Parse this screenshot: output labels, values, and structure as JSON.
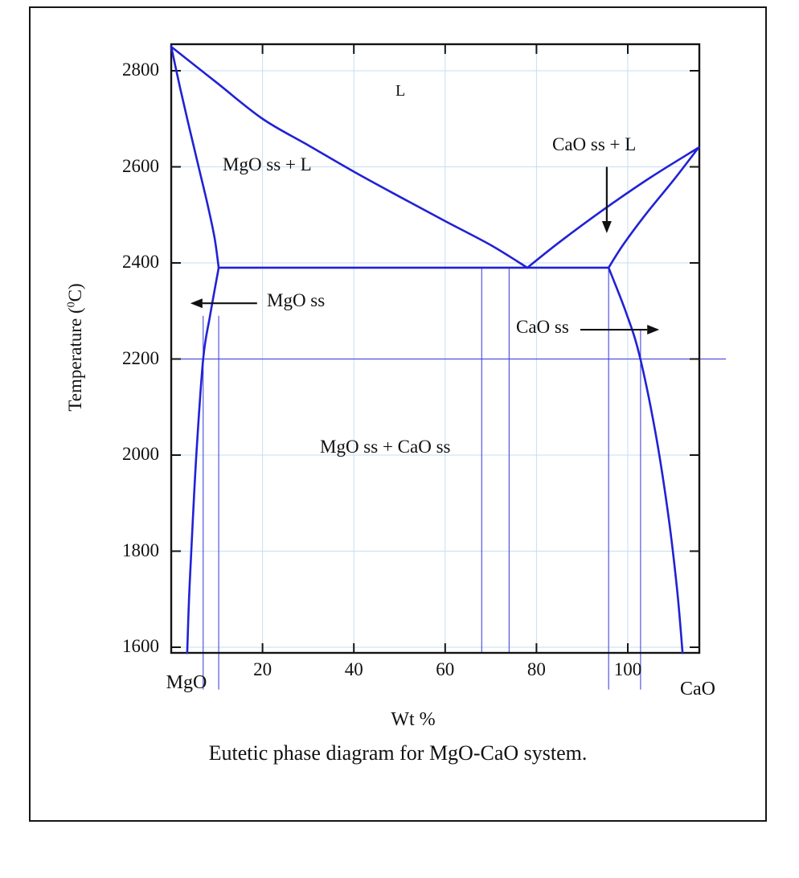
{
  "figure": {
    "caption": "Eutetic phase diagram for MgO-CaO system."
  },
  "axes": {
    "y_title_pre": "Temperature (",
    "y_title_sup": "0",
    "y_title_post": "C)",
    "x_title": "Wt %",
    "x_end_left": "MgO",
    "x_end_right": "CaO"
  },
  "chart_data": {
    "type": "line",
    "title": "Eutetic phase diagram for MgO-CaO system.",
    "xlabel": "Wt % (MgO to CaO)",
    "ylabel": "Temperature (0C)",
    "x_range_wt_pct": [
      0,
      115.5
    ],
    "y_range_c": [
      1588,
      2855
    ],
    "x_ticks": [
      20,
      40,
      60,
      80,
      100
    ],
    "y_ticks": [
      1600,
      1800,
      2000,
      2200,
      2400,
      2600,
      2800
    ],
    "grid": true,
    "colors": {
      "curve": "#2121d6",
      "thin_line": "#3434d9",
      "grid": "#c6dff1",
      "axis": "#141414",
      "text": "#111111",
      "arrow": "#111111"
    },
    "region_labels": {
      "liquid": "L",
      "mgo_ss_plus_l": "MgO ss + L",
      "cao_ss_plus_l": "CaO ss + L",
      "mgo_ss": "MgO ss",
      "cao_ss": "CaO ss",
      "mgo_ss_plus_cao_ss": "MgO ss + CaO ss"
    },
    "key_points": {
      "mgo_melting_c": 2850,
      "cao_corner_c": 2640,
      "eutectic_c": 2390,
      "eutectic_wt_pct": 78,
      "mgo_ss_solubility_limit_wt": 10.4,
      "cao_ss_solubility_limit_wt": 95.8
    },
    "series": [
      {
        "name": "mgo_liquidus",
        "points": [
          [
            0,
            2850
          ],
          [
            10,
            2775
          ],
          [
            20,
            2700
          ],
          [
            30,
            2645
          ],
          [
            40,
            2590
          ],
          [
            50,
            2538
          ],
          [
            60,
            2487
          ],
          [
            70,
            2437
          ],
          [
            78,
            2390
          ]
        ]
      },
      {
        "name": "cao_liquidus",
        "points": [
          [
            78,
            2390
          ],
          [
            85,
            2443
          ],
          [
            95,
            2513
          ],
          [
            105,
            2578
          ],
          [
            115.5,
            2640
          ]
        ]
      },
      {
        "name": "mgo_solidus",
        "points": [
          [
            0,
            2850
          ],
          [
            2,
            2762
          ],
          [
            4,
            2680
          ],
          [
            6,
            2600
          ],
          [
            8,
            2520
          ],
          [
            9.5,
            2452
          ],
          [
            10.4,
            2390
          ]
        ]
      },
      {
        "name": "cao_solidus",
        "points": [
          [
            115.5,
            2640
          ],
          [
            110,
            2572
          ],
          [
            104,
            2502
          ],
          [
            99,
            2438
          ],
          [
            95.8,
            2390
          ]
        ]
      },
      {
        "name": "eutectic_isotherm",
        "points": [
          [
            10.4,
            2390
          ],
          [
            95.8,
            2390
          ]
        ]
      },
      {
        "name": "mgo_solvus",
        "points": [
          [
            10.4,
            2390
          ],
          [
            8.5,
            2290
          ],
          [
            7,
            2200
          ],
          [
            5.5,
            2000
          ],
          [
            4.5,
            1820
          ],
          [
            3.9,
            1700
          ],
          [
            3.5,
            1588
          ]
        ]
      },
      {
        "name": "cao_solvus",
        "points": [
          [
            95.8,
            2390
          ],
          [
            99.5,
            2300
          ],
          [
            102.5,
            2210
          ],
          [
            106,
            2050
          ],
          [
            108.8,
            1880
          ],
          [
            110.8,
            1720
          ],
          [
            112,
            1588
          ]
        ]
      }
    ],
    "construction_lines": {
      "vertical": [
        {
          "wt": 7.0,
          "t_top": 2290,
          "t_bottom": 1512
        },
        {
          "wt": 10.4,
          "t_top": 2290,
          "t_bottom": 1512
        },
        {
          "wt": 68,
          "t_top": 2390,
          "t_bottom": 1588
        },
        {
          "wt": 74,
          "t_top": 2390,
          "t_bottom": 1588
        },
        {
          "wt": 95.8,
          "t_top": 2390,
          "t_bottom": 1512
        },
        {
          "wt": 102.8,
          "t_top": 2262,
          "t_bottom": 1512
        }
      ],
      "horizontal": [
        {
          "t": 2200,
          "wt_from": 0,
          "wt_to": 121.5
        }
      ]
    },
    "arrows": [
      {
        "name": "mgo-ss-arrow",
        "from": [
          18.8,
          2316
        ],
        "to": [
          4.2,
          2316
        ]
      },
      {
        "name": "cao-ss-arrow",
        "from": [
          89.6,
          2261
        ],
        "to": [
          106.9,
          2261
        ]
      },
      {
        "name": "cao-ss-l-arrow",
        "from": [
          95.4,
          2600
        ],
        "to": [
          95.4,
          2462
        ]
      }
    ],
    "legend": null
  }
}
